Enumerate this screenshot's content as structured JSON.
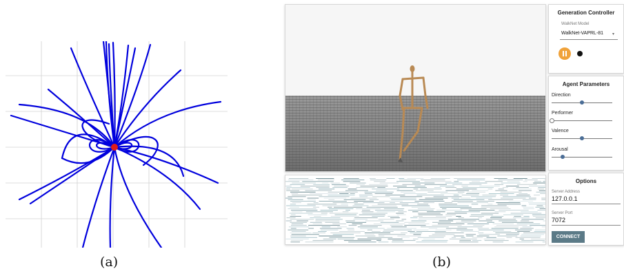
{
  "captions": {
    "a": "(a)",
    "b": "(b)"
  },
  "generation_controller": {
    "title": "Generation Controller",
    "model_label": "WalkNet Model",
    "model_value": "WalkNet-VAPRL-81",
    "dropdown_icon": "caret-down-icon",
    "play_state_icon": "pause-icon",
    "record_icon": "record-dot-icon"
  },
  "agent_parameters": {
    "title": "Agent Parameters",
    "sliders": [
      {
        "label": "Direction",
        "value": 0.5
      },
      {
        "label": "Performer",
        "value": 0.0
      },
      {
        "label": "Valence",
        "value": 0.5
      },
      {
        "label": "Arousal",
        "value": 0.18
      }
    ]
  },
  "options": {
    "title": "Options",
    "server_address_label": "Server Address",
    "server_address_value": "127.0.0.1",
    "server_port_label": "Server Port",
    "server_port_value": "7072",
    "connect_label": "CONNECT"
  },
  "colors": {
    "accent": "#f0a23a",
    "slider": "#4a6d96",
    "button": "#5b7a87",
    "trajectory": "#0000dd",
    "origin": "#e01c1c"
  }
}
